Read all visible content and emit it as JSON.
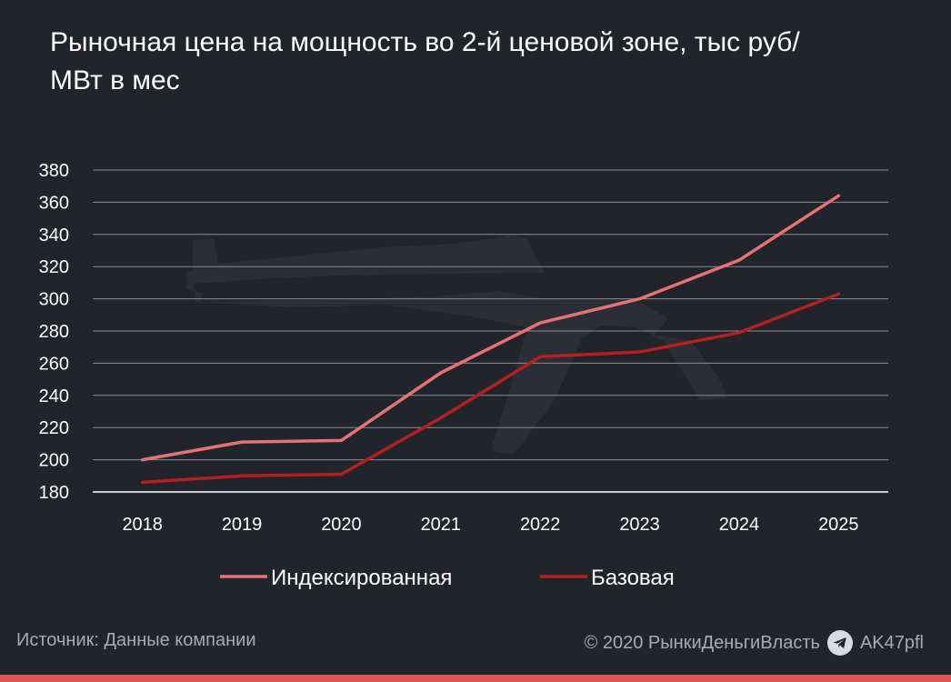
{
  "title": "Рыночная цена на мощность во 2-й ценовой зоне, тыс руб/МВт в мес",
  "footer": {
    "source": "Источник: Данные компании",
    "copyright": "© 2020  РынкиДеньгиВласть",
    "handle": "AK47pfl"
  },
  "colors": {
    "background": "#22242c",
    "grid": "#8a8c93",
    "text": "#ffffff",
    "indexed": "#e57373",
    "base": "#b3201f",
    "accent_bar": "#e05555"
  },
  "icons": [
    "telegram-icon",
    "rifle-watermark-icon"
  ],
  "chart_data": {
    "type": "line",
    "title": "Рыночная цена на мощность во 2-й ценовой зоне, тыс руб/МВт в мес",
    "xlabel": "",
    "ylabel": "",
    "categories": [
      "2018",
      "2019",
      "2020",
      "2021",
      "2022",
      "2023",
      "2024",
      "2025"
    ],
    "yticks": [
      "180",
      "200",
      "220",
      "240",
      "260",
      "280",
      "300",
      "320",
      "340",
      "360",
      "380"
    ],
    "ylim": [
      180,
      380
    ],
    "grid": true,
    "legend_position": "bottom",
    "series": [
      {
        "name": "Индексированная",
        "color": "#e57373",
        "values": [
          200,
          211,
          212,
          254,
          285,
          300,
          324,
          364
        ]
      },
      {
        "name": "Базовая",
        "color": "#b3201f",
        "values": [
          186,
          190,
          191,
          226,
          264,
          267,
          279,
          303
        ]
      }
    ]
  }
}
